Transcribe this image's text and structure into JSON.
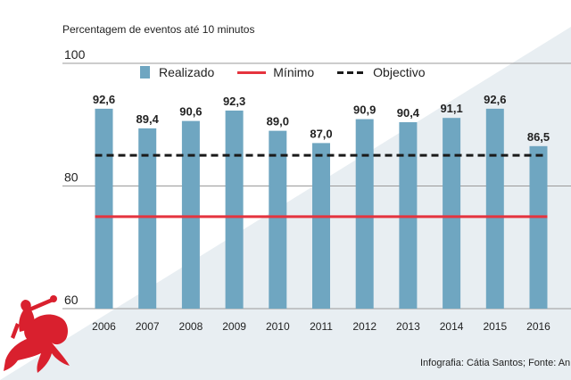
{
  "header": {
    "title": "Percentagem de eventos até 10 minutos"
  },
  "footer": {
    "credit": "Infografia: Cátia Santos; Fonte: An"
  },
  "legend": {
    "realizado": "Realizado",
    "minimo": "Mínimo",
    "objectivo": "Objectivo"
  },
  "colors": {
    "bar": "#6fa6c1",
    "minimo": "#e5333e",
    "objectivo": "#1a1a1a",
    "background_stripe": "#e8eef2",
    "logo": "#d9202e"
  },
  "icons": {
    "logo": "rider-horse-logo"
  },
  "chart_data": {
    "type": "bar",
    "title": "Percentagem de eventos até 10 minutos",
    "categories": [
      "2006",
      "2007",
      "2008",
      "2009",
      "2010",
      "2011",
      "2012",
      "2013",
      "2014",
      "2015",
      "2016"
    ],
    "series": [
      {
        "name": "Realizado",
        "type": "bar",
        "values": [
          92.6,
          89.4,
          90.6,
          92.3,
          89.0,
          87.0,
          90.9,
          90.4,
          91.1,
          92.6,
          86.5
        ],
        "labels": [
          "92,6",
          "89,4",
          "90,6",
          "92,3",
          "89,0",
          "87,0",
          "90,9",
          "90,4",
          "91,1",
          "92,6",
          "86,5"
        ]
      },
      {
        "name": "Mínimo",
        "type": "line",
        "value": 75
      },
      {
        "name": "Objectivo",
        "type": "line",
        "style": "dashed",
        "value": 85
      }
    ],
    "yticks": [
      "60",
      "80",
      "100"
    ],
    "ylim": [
      60,
      100
    ],
    "grid": true,
    "legend_position": "top"
  }
}
